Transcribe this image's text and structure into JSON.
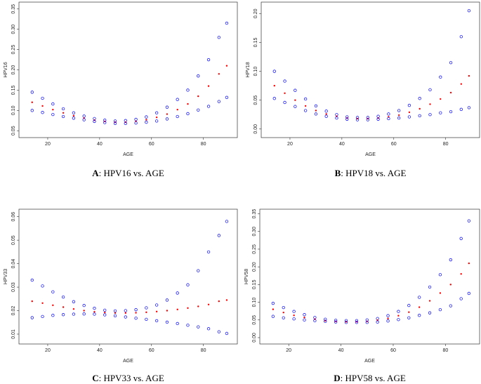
{
  "chart_data": [
    {
      "type": "scatter",
      "caption_label": "A",
      "caption": ": HPV16 vs. AGE",
      "xlabel": "AGE",
      "ylabel": "HPV16",
      "x": [
        14,
        18,
        22,
        26,
        30,
        34,
        38,
        42,
        46,
        50,
        54,
        58,
        62,
        66,
        70,
        74,
        78,
        82,
        86,
        89
      ],
      "xlim": [
        10,
        92
      ],
      "xticks": [
        20,
        40,
        60,
        80
      ],
      "ylim": [
        0.04,
        0.36
      ],
      "yticks": [
        0.05,
        {
          "value": 0.1,
          "label": "0.10"
        },
        0.15,
        {
          "value": 0.2,
          "label": "0.20"
        },
        0.25,
        {
          "value": 0.3,
          "label": "0.30"
        },
        0.35
      ],
      "series": [
        {
          "color": "#0000ff",
          "marker": "open",
          "values": [
            0.145,
            0.13,
            0.116,
            0.104,
            0.094,
            0.086,
            0.08,
            0.076,
            0.074,
            0.075,
            0.078,
            0.084,
            0.094,
            0.108,
            0.127,
            0.15,
            0.185,
            0.225,
            0.28,
            0.315
          ]
        },
        {
          "color": "#ff0000",
          "marker": "filled",
          "values": [
            0.12,
            0.111,
            0.102,
            0.094,
            0.087,
            0.081,
            0.076,
            0.073,
            0.071,
            0.071,
            0.073,
            0.077,
            0.083,
            0.091,
            0.102,
            0.116,
            0.135,
            0.16,
            0.19,
            0.21
          ]
        },
        {
          "color": "#0000ff",
          "marker": "open",
          "values": [
            0.1,
            0.095,
            0.09,
            0.085,
            0.081,
            0.077,
            0.073,
            0.07,
            0.068,
            0.068,
            0.069,
            0.071,
            0.074,
            0.079,
            0.085,
            0.092,
            0.101,
            0.11,
            0.122,
            0.132
          ]
        }
      ]
    },
    {
      "type": "scatter",
      "caption_label": "B",
      "caption": ": HPV18 vs. AGE",
      "xlabel": "AGE",
      "ylabel": "HPV18",
      "x": [
        14,
        18,
        22,
        26,
        30,
        34,
        38,
        42,
        46,
        50,
        54,
        58,
        62,
        66,
        70,
        74,
        78,
        82,
        86,
        89
      ],
      "xlim": [
        10,
        92
      ],
      "xticks": [
        20,
        40,
        60,
        80
      ],
      "ylim": [
        -0.01,
        0.215
      ],
      "yticks": [
        {
          "value": 0,
          "label": "0.00"
        },
        0.05,
        {
          "value": 0.1,
          "label": "0.10"
        },
        0.15,
        {
          "value": 0.2,
          "label": "0.20"
        }
      ],
      "series": [
        {
          "color": "#0000ff",
          "marker": "open",
          "values": [
            0.1,
            0.083,
            0.067,
            0.052,
            0.04,
            0.031,
            0.025,
            0.021,
            0.02,
            0.02,
            0.022,
            0.026,
            0.032,
            0.041,
            0.053,
            0.068,
            0.09,
            0.115,
            0.16,
            0.205
          ]
        },
        {
          "color": "#ff0000",
          "marker": "filled",
          "values": [
            0.075,
            0.062,
            0.05,
            0.04,
            0.032,
            0.026,
            0.022,
            0.019,
            0.018,
            0.018,
            0.019,
            0.021,
            0.024,
            0.029,
            0.035,
            0.043,
            0.052,
            0.063,
            0.078,
            0.092
          ]
        },
        {
          "color": "#0000ff",
          "marker": "open",
          "values": [
            0.053,
            0.046,
            0.039,
            0.032,
            0.026,
            0.022,
            0.019,
            0.017,
            0.016,
            0.016,
            0.017,
            0.018,
            0.019,
            0.021,
            0.023,
            0.025,
            0.028,
            0.03,
            0.034,
            0.037
          ]
        }
      ]
    },
    {
      "type": "scatter",
      "caption_label": "C",
      "caption": ": HPV33 vs. AGE",
      "xlabel": "AGE",
      "ylabel": "HPV33",
      "x": [
        14,
        18,
        22,
        26,
        30,
        34,
        38,
        42,
        46,
        50,
        54,
        58,
        62,
        66,
        70,
        74,
        78,
        82,
        86,
        89
      ],
      "xlim": [
        10,
        92
      ],
      "xticks": [
        20,
        40,
        60,
        80
      ],
      "ylim": [
        0.007,
        0.062
      ],
      "yticks": [
        0.01,
        0.02,
        0.03,
        0.04,
        0.05,
        0.06
      ],
      "series": [
        {
          "color": "#0000ff",
          "marker": "open",
          "values": [
            0.033,
            0.0305,
            0.028,
            0.0258,
            0.0238,
            0.0222,
            0.021,
            0.0202,
            0.0199,
            0.02,
            0.0204,
            0.0212,
            0.0224,
            0.0245,
            0.0275,
            0.031,
            0.037,
            0.045,
            0.052,
            0.058
          ]
        },
        {
          "color": "#ff0000",
          "marker": "filled",
          "values": [
            0.024,
            0.0232,
            0.0223,
            0.0215,
            0.0207,
            0.02,
            0.0195,
            0.0192,
            0.019,
            0.019,
            0.0191,
            0.0193,
            0.0196,
            0.02,
            0.0205,
            0.0211,
            0.0218,
            0.0226,
            0.024,
            0.0245
          ]
        },
        {
          "color": "#0000ff",
          "marker": "open",
          "values": [
            0.017,
            0.0175,
            0.018,
            0.0183,
            0.0185,
            0.0186,
            0.0185,
            0.0182,
            0.0178,
            0.0173,
            0.0168,
            0.0163,
            0.0157,
            0.0151,
            0.0145,
            0.0138,
            0.0131,
            0.0123,
            0.011,
            0.0103
          ]
        }
      ]
    },
    {
      "type": "scatter",
      "caption_label": "D",
      "caption": ": HPV58 vs. AGE",
      "xlabel": "AGE",
      "ylabel": "HPV58",
      "x": [
        14,
        18,
        22,
        26,
        30,
        34,
        38,
        42,
        46,
        50,
        54,
        58,
        62,
        66,
        70,
        74,
        78,
        82,
        86,
        89
      ],
      "xlim": [
        10,
        92
      ],
      "xticks": [
        20,
        40,
        60,
        80
      ],
      "ylim": [
        -0.01,
        0.355
      ],
      "yticks": [
        {
          "value": 0,
          "label": "0.00"
        },
        0.05,
        {
          "value": 0.1,
          "label": "0.10"
        },
        0.15,
        {
          "value": 0.2,
          "label": "0.20"
        },
        0.25,
        {
          "value": 0.3,
          "label": "0.30"
        },
        0.35
      ],
      "series": [
        {
          "color": "#0000ff",
          "marker": "open",
          "values": [
            0.097,
            0.085,
            0.074,
            0.065,
            0.057,
            0.052,
            0.049,
            0.048,
            0.048,
            0.05,
            0.054,
            0.062,
            0.074,
            0.091,
            0.114,
            0.143,
            0.178,
            0.22,
            0.28,
            0.33
          ]
        },
        {
          "color": "#ff0000",
          "marker": "filled",
          "values": [
            0.08,
            0.071,
            0.063,
            0.057,
            0.052,
            0.048,
            0.046,
            0.045,
            0.045,
            0.046,
            0.049,
            0.054,
            0.062,
            0.072,
            0.086,
            0.104,
            0.126,
            0.15,
            0.18,
            0.21
          ]
        },
        {
          "color": "#0000ff",
          "marker": "open",
          "values": [
            0.06,
            0.056,
            0.053,
            0.05,
            0.048,
            0.046,
            0.044,
            0.043,
            0.043,
            0.043,
            0.044,
            0.047,
            0.051,
            0.056,
            0.063,
            0.07,
            0.079,
            0.09,
            0.11,
            0.125
          ]
        }
      ]
    }
  ]
}
